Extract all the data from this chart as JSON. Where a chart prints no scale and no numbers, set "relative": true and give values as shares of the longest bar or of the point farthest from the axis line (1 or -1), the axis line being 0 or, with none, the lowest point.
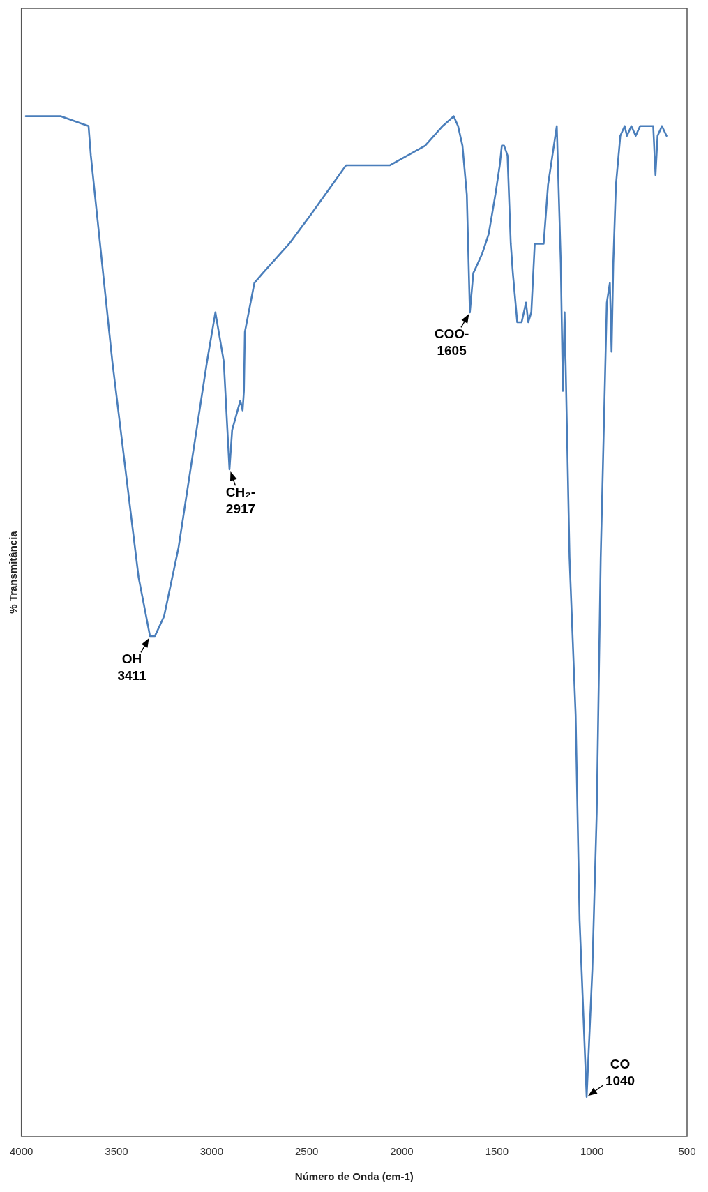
{
  "chart_data": {
    "type": "line",
    "xlabel": "Número de Onda (cm-1)",
    "ylabel": "% Transmitância",
    "relative": true,
    "color": "#4a7ebb",
    "marker": "none",
    "line_style": "solid",
    "grid": false,
    "legend": false,
    "tick_labels": "x",
    "xlim": [
      4000,
      500
    ],
    "xticks": [
      4000,
      3500,
      3000,
      2500,
      2000,
      1500,
      1000,
      500
    ],
    "x": [
      608,
      632,
      655,
      666,
      678,
      712,
      747,
      770,
      793,
      816,
      828,
      851,
      874,
      888,
      897,
      906,
      922,
      954,
      975,
      998,
      1028,
      1065,
      1086,
      1118,
      1144,
      1153,
      1164,
      1185,
      1208,
      1231,
      1254,
      1277,
      1301,
      1319,
      1335,
      1347,
      1358,
      1370,
      1393,
      1416,
      1427,
      1444,
      1462,
      1474,
      1485,
      1508,
      1543,
      1577,
      1600,
      1624,
      1642,
      1658,
      1681,
      1704,
      1727,
      1785,
      1877,
      2062,
      2293,
      2477,
      2592,
      2731,
      2775,
      2825,
      2830,
      2837,
      2849,
      2892,
      2906,
      2936,
      2980,
      3024,
      3174,
      3250,
      3298,
      3324,
      3384,
      3522,
      3635,
      3647,
      3792,
      3977
    ],
    "values": [
      0.98,
      0.99,
      0.98,
      0.94,
      0.99,
      0.99,
      0.99,
      0.98,
      0.99,
      0.98,
      0.99,
      0.98,
      0.93,
      0.85,
      0.76,
      0.83,
      0.81,
      0.55,
      0.29,
      0.13,
      0,
      0.18,
      0.39,
      0.55,
      0.8,
      0.72,
      0.85,
      0.99,
      0.96,
      0.93,
      0.87,
      0.87,
      0.87,
      0.8,
      0.79,
      0.81,
      0.8,
      0.79,
      0.79,
      0.84,
      0.87,
      0.96,
      0.97,
      0.97,
      0.95,
      0.92,
      0.88,
      0.86,
      0.85,
      0.84,
      0.8,
      0.92,
      0.97,
      0.99,
      1,
      0.99,
      0.97,
      0.95,
      0.95,
      0.9,
      0.87,
      0.84,
      0.83,
      0.78,
      0.72,
      0.7,
      0.71,
      0.68,
      0.64,
      0.75,
      0.8,
      0.75,
      0.56,
      0.49,
      0.47,
      0.47,
      0.53,
      0.75,
      0.96,
      0.99,
      1,
      1
    ],
    "annotations": [
      {
        "text": "CO\n1040",
        "x": 1028,
        "y": 0
      },
      {
        "text": "COO-\n1605",
        "x": 1642,
        "y": 0.8
      },
      {
        "text": "CH₂-\n2917",
        "x": 2906,
        "y": 0.64
      },
      {
        "text": "OH\n3411",
        "x": 3324,
        "y": 0.47
      }
    ]
  }
}
